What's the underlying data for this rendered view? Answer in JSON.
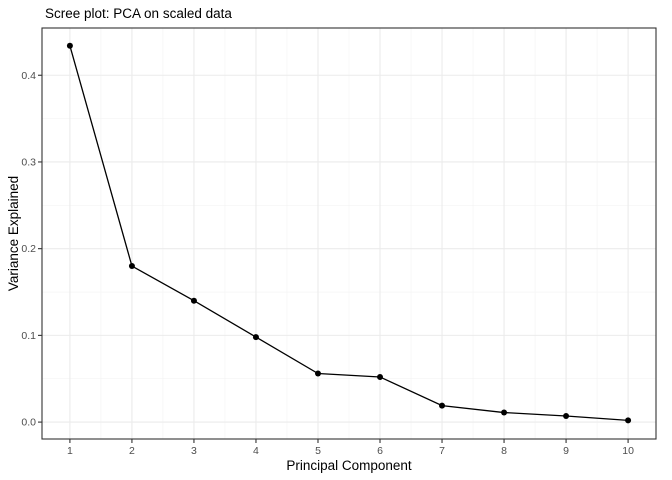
{
  "chart_data": {
    "type": "line",
    "title": "Scree plot: PCA on scaled data",
    "xlabel": "Principal Component",
    "ylabel": "Variance Explained",
    "x": [
      1,
      2,
      3,
      4,
      5,
      6,
      7,
      8,
      9,
      10
    ],
    "xticks": [
      "1",
      "2",
      "3",
      "4",
      "5",
      "6",
      "7",
      "8",
      "9",
      "10"
    ],
    "yticks": [
      "0.0",
      "0.1",
      "0.2",
      "0.3",
      "0.4"
    ],
    "ytick_values": [
      0.0,
      0.1,
      0.2,
      0.3,
      0.4
    ],
    "xlim": [
      0.55,
      10.45
    ],
    "ylim": [
      -0.0195,
      0.4545
    ],
    "series": [
      {
        "values": [
          0.434,
          0.18,
          0.14,
          0.098,
          0.056,
          0.052,
          0.019,
          0.011,
          0.007,
          0.002
        ]
      }
    ],
    "grid": true,
    "markers": true,
    "line_color": "#000000",
    "grid_color": "#ebebeb"
  }
}
